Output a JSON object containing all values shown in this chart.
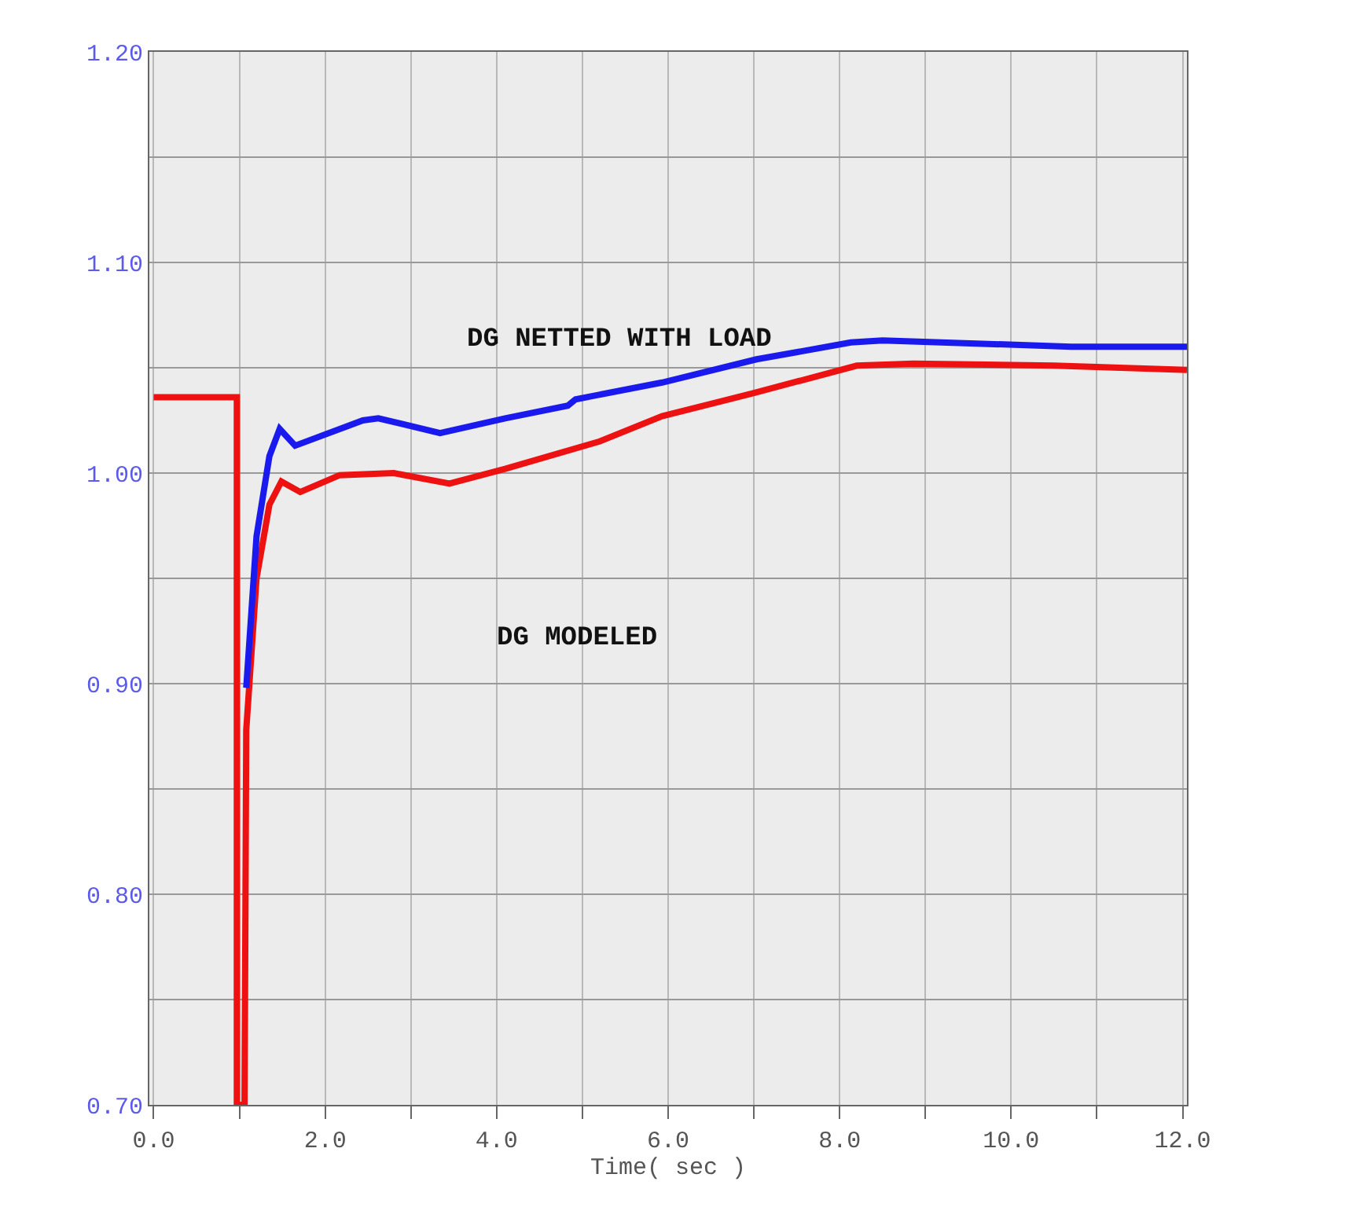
{
  "chart_data": {
    "type": "line",
    "xlabel": "Time( sec )",
    "xlim": [
      -0.05,
      12.05
    ],
    "ylim": [
      0.7,
      1.2
    ],
    "xticks": [
      {
        "value": 0,
        "label": "0.0"
      },
      {
        "value": 1,
        "label": null
      },
      {
        "value": 2,
        "label": "2.0"
      },
      {
        "value": 3,
        "label": null
      },
      {
        "value": 4,
        "label": "4.0"
      },
      {
        "value": 5,
        "label": null
      },
      {
        "value": 6,
        "label": "6.0"
      },
      {
        "value": 7,
        "label": null
      },
      {
        "value": 8,
        "label": "8.0"
      },
      {
        "value": 9,
        "label": null
      },
      {
        "value": 10,
        "label": "10.0"
      },
      {
        "value": 11,
        "label": null
      },
      {
        "value": 12,
        "label": "12.0"
      }
    ],
    "yticks": [
      {
        "value": 0.7,
        "label": "0.70"
      },
      {
        "value": 0.75,
        "label": null
      },
      {
        "value": 0.8,
        "label": "0.80"
      },
      {
        "value": 0.85,
        "label": null
      },
      {
        "value": 0.9,
        "label": "0.90"
      },
      {
        "value": 0.95,
        "label": null
      },
      {
        "value": 1.0,
        "label": "1.00"
      },
      {
        "value": 1.05,
        "label": null
      },
      {
        "value": 1.1,
        "label": "1.10"
      },
      {
        "value": 1.15,
        "label": null
      },
      {
        "value": 1.2,
        "label": "1.20"
      }
    ],
    "grid": true,
    "marker": "none",
    "line_style": "solid",
    "series": [
      {
        "color": "#ee1111",
        "x": [
          0,
          0.97,
          0.97,
          1.06,
          1.08,
          1.2,
          1.35,
          1.49,
          1.71,
          2.17,
          2.8,
          3.45,
          4.1,
          5.2,
          5.93,
          7.0,
          8.2,
          8.86,
          10.5,
          12.05
        ],
        "values": [
          1.036,
          1.036,
          0.7,
          0.7,
          0.878,
          0.95,
          0.985,
          0.996,
          0.991,
          0.999,
          1.0,
          0.995,
          1.002,
          1.015,
          1.027,
          1.038,
          1.051,
          1.052,
          1.051,
          1.049
        ]
      },
      {
        "color": "#1a1aee",
        "x": [
          1.08,
          1.2,
          1.35,
          1.47,
          1.65,
          2.44,
          2.62,
          3.34,
          4.1,
          4.83,
          4.92,
          5.93,
          7.03,
          8.13,
          8.5,
          10.7,
          12.05
        ],
        "values": [
          0.898,
          0.97,
          1.008,
          1.021,
          1.013,
          1.025,
          1.026,
          1.019,
          1.026,
          1.032,
          1.035,
          1.043,
          1.054,
          1.062,
          1.063,
          1.06,
          1.06
        ]
      }
    ],
    "annotations": [
      "DG NETTED WITH LOAD",
      "DG MODELED"
    ]
  }
}
